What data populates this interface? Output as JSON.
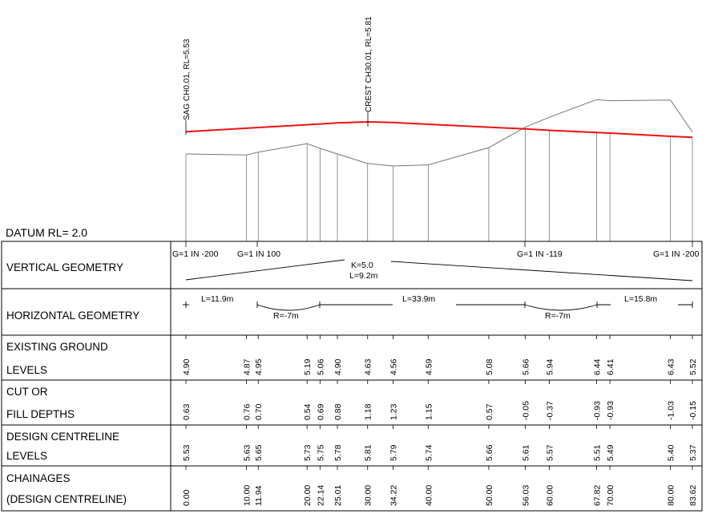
{
  "datum_label": "DATUM RL= 2.0",
  "profile_labels": {
    "sag": "SAG CH0.01, RL=5.53",
    "crest": "CREST CH30.01, RL=5.81"
  },
  "row_labels": {
    "vertical": "VERTICAL GEOMETRY",
    "horizontal": "HORIZONTAL GEOMETRY",
    "existing_1": "EXISTING GROUND",
    "existing_2": "LEVELS",
    "cut_1": "CUT OR",
    "cut_2": "FILL DEPTHS",
    "design_1": "DESIGN CENTRELINE",
    "design_2": "LEVELS",
    "chain_1": "CHAINAGES",
    "chain_2": "(DESIGN CENTRELINE)"
  },
  "vertical_geometry": {
    "grade_1": "G=1 IN -200",
    "grade_2": "G=1 IN 100",
    "grade_3": "G=1 IN -119",
    "grade_4": "G=1 IN -200",
    "curve_k": "K=5.0",
    "curve_l": "L=9.2m"
  },
  "horizontal_geometry": {
    "straight_1": "L=11.9m",
    "curve_1": "R=-7m",
    "straight_2": "L=33.9m",
    "curve_2": "R=-7m",
    "straight_3": "L=15.8m"
  },
  "table": {
    "chainages": [
      "0.00",
      "10.00",
      "11.94",
      "20.00",
      "22.14",
      "25.01",
      "30.00",
      "34.22",
      "40.00",
      "50.00",
      "56.03",
      "60.00",
      "67.82",
      "70.00",
      "80.00",
      "83.62"
    ],
    "existing": [
      "4.90",
      "4.87",
      "4.95",
      "5.19",
      "5.06",
      "4.90",
      "4.63",
      "4.56",
      "4.59",
      "5.08",
      "5.66",
      "5.94",
      "6.44",
      "6.41",
      "6.43",
      "5.52"
    ],
    "cutfill": [
      "0.63",
      "0.76",
      "0.70",
      "0.54",
      "0.69",
      "0.88",
      "1.18",
      "1.23",
      "1.15",
      "0.57",
      "-0.05",
      "-0.37",
      "-0.93",
      "-0.93",
      "-1.03",
      "-0.15"
    ],
    "design": [
      "5.53",
      "5.63",
      "5.65",
      "5.73",
      "5.75",
      "5.78",
      "5.81",
      "5.79",
      "5.74",
      "5.66",
      "5.61",
      "5.57",
      "5.51",
      "5.49",
      "5.40",
      "5.37"
    ]
  },
  "colors": {
    "design_line": "#ee1111",
    "ground_line": "#777777",
    "grid": "#000000"
  }
}
